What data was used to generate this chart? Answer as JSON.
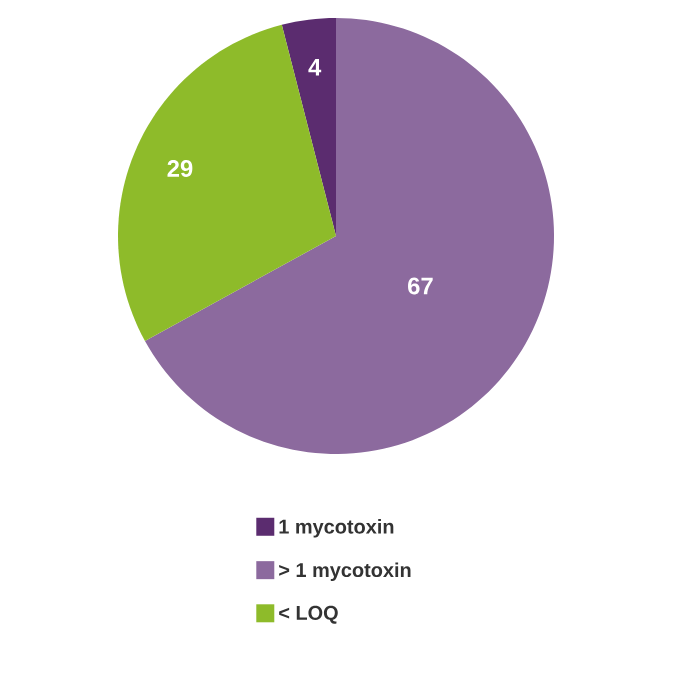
{
  "chart_data": {
    "type": "pie",
    "categories": [
      "1 mycotoxin",
      "> 1 mycotoxin",
      "< LOQ"
    ],
    "values": [
      4,
      67,
      29
    ],
    "colors": [
      "#5b2c6f",
      "#8c6a9e",
      "#8ebb2a"
    ],
    "data_labels": true,
    "legend": "bottom"
  }
}
